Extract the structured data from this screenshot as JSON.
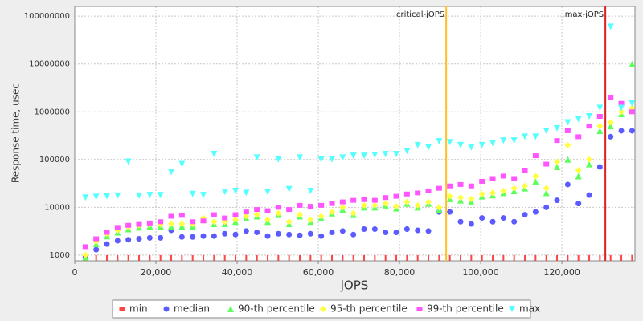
{
  "chart_data": {
    "type": "scatter",
    "y_label": "Response time, usec",
    "x_label": "jOPS",
    "log_y": true,
    "grid": true,
    "xlim": [
      0,
      138000
    ],
    "ylim": [
      760,
      160000000
    ],
    "xticks": [
      0,
      {
        "value": 20000,
        "label": "20,000"
      },
      {
        "value": 40000,
        "label": "40,000"
      },
      {
        "value": 60000,
        "label": "60,000"
      },
      {
        "value": 80000,
        "label": "80,000"
      },
      {
        "value": 100000,
        "label": "100,000"
      },
      {
        "value": 120000,
        "label": "120,000"
      }
    ],
    "yticks": [
      1000,
      10000,
      100000,
      1000000,
      10000000,
      100000000
    ],
    "markers": [
      {
        "label": "critical-jOPS",
        "value": 91500,
        "color": "#ffc020"
      },
      {
        "label": "max-jOPS",
        "value": 130700,
        "color": "#e02020"
      }
    ],
    "legend": "bottom",
    "x": [
      2640,
      5280,
      7920,
      10560,
      13200,
      15840,
      18480,
      21120,
      23760,
      26400,
      29040,
      31680,
      34320,
      36960,
      39600,
      42240,
      44880,
      47520,
      50160,
      52800,
      55440,
      58080,
      60720,
      63360,
      66000,
      68640,
      71280,
      73920,
      76560,
      79200,
      81840,
      84480,
      87120,
      89760,
      92400,
      95040,
      97680,
      100320,
      102960,
      105600,
      108240,
      110880,
      113520,
      116160,
      118800,
      121440,
      124080,
      126720,
      129360,
      132000,
      134640,
      137280
    ],
    "series": [
      {
        "name": "min",
        "color": "#ff4444",
        "marker": "tick",
        "values": [
          1000,
          1000,
          1000,
          1000,
          1000,
          1000,
          1000,
          1000,
          1000,
          1000,
          1000,
          1000,
          1000,
          1000,
          1000,
          1000,
          1000,
          1000,
          1000,
          1000,
          1000,
          1000,
          1000,
          1000,
          1000,
          1000,
          1000,
          1000,
          1000,
          1000,
          1000,
          1000,
          1000,
          1000,
          1000,
          1000,
          1000,
          1000,
          1000,
          1000,
          1000,
          1000,
          1000,
          1000,
          1000,
          1000,
          1000,
          1000,
          1000,
          1000,
          1000,
          1000
        ]
      },
      {
        "name": "median",
        "color": "#5b5bff",
        "marker": "circle",
        "values": [
          900,
          1300,
          1700,
          2000,
          2100,
          2200,
          2300,
          2300,
          3300,
          2400,
          2400,
          2500,
          2500,
          2800,
          2700,
          3200,
          3000,
          2500,
          2800,
          2700,
          2600,
          2800,
          2500,
          3000,
          3200,
          2700,
          3500,
          3500,
          3000,
          3000,
          3500,
          3300,
          3200,
          8000,
          8000,
          5000,
          4500,
          6000,
          5000,
          6000,
          5000,
          7000,
          8000,
          10000,
          14000,
          30000,
          12000,
          18000,
          70000,
          300000,
          400000,
          400000
        ]
      },
      {
        "name": "90-th percentile",
        "color": "#5cff5c",
        "marker": "triangle-up",
        "values": [
          900,
          1700,
          2500,
          3000,
          3500,
          3800,
          4000,
          4000,
          4000,
          4000,
          4000,
          5500,
          4500,
          4500,
          5000,
          6000,
          6500,
          5000,
          7000,
          4500,
          6500,
          5000,
          6000,
          7500,
          9000,
          7000,
          10000,
          10000,
          11000,
          9500,
          12000,
          10000,
          12000,
          9000,
          15000,
          14000,
          13000,
          17000,
          18000,
          20000,
          22000,
          25000,
          35000,
          20000,
          70000,
          100000,
          45000,
          80000,
          400000,
          500000,
          900000,
          10000000
        ]
      },
      {
        "name": "95-th percentile",
        "color": "#ffff40",
        "marker": "diamond",
        "values": [
          1000,
          1900,
          2800,
          3300,
          3900,
          4200,
          4400,
          4400,
          4500,
          4500,
          4500,
          6000,
          5000,
          5000,
          5500,
          6500,
          7000,
          5500,
          7500,
          5000,
          7000,
          5500,
          6500,
          8000,
          10000,
          7500,
          11000,
          11000,
          12000,
          10500,
          13000,
          11000,
          13000,
          10000,
          17000,
          16000,
          15000,
          19000,
          20000,
          22000,
          25000,
          28000,
          45000,
          25000,
          90000,
          200000,
          60000,
          100000,
          500000,
          600000,
          1000000,
          1200000
        ]
      },
      {
        "name": "99-th percentile",
        "color": "#ff55ff",
        "marker": "square",
        "values": [
          1500,
          2200,
          3000,
          3800,
          4200,
          4400,
          4700,
          5000,
          6500,
          6800,
          5000,
          5200,
          7000,
          6000,
          7000,
          8000,
          9000,
          8500,
          10000,
          9000,
          11000,
          10500,
          11000,
          12000,
          13000,
          14000,
          14500,
          14000,
          16000,
          17000,
          19000,
          20000,
          22000,
          25000,
          28000,
          30000,
          28000,
          35000,
          40000,
          45000,
          40000,
          60000,
          120000,
          80000,
          250000,
          400000,
          300000,
          500000,
          800000,
          2000000,
          1500000,
          1000000
        ]
      },
      {
        "name": "max",
        "color": "#55ffff",
        "marker": "triangle-down",
        "values": [
          16000,
          16500,
          17000,
          17500,
          90000,
          17500,
          18000,
          18000,
          55000,
          80000,
          19000,
          18000,
          130000,
          21000,
          22000,
          20000,
          110000,
          21000,
          100000,
          24000,
          110000,
          22000,
          100000,
          100000,
          110000,
          120000,
          120000,
          125000,
          130000,
          130000,
          150000,
          200000,
          180000,
          240000,
          230000,
          200000,
          180000,
          200000,
          220000,
          250000,
          250000,
          300000,
          300000,
          400000,
          450000,
          600000,
          700000,
          800000,
          1200000,
          60000000,
          1200000,
          1500000
        ]
      }
    ]
  }
}
